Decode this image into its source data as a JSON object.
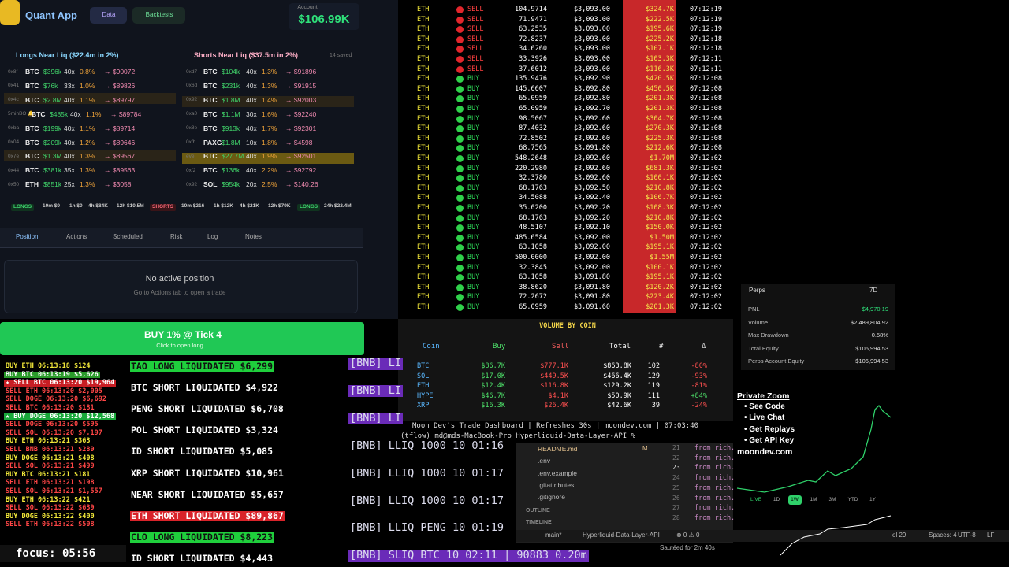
{
  "app": {
    "title": "Quant App",
    "tabs": [
      "Data",
      "Backtests"
    ],
    "account_label": "Account",
    "account_value": "$106.99K"
  },
  "longs": {
    "title": "Longs Near Liq ($22.4m in 2%)",
    "rows": [
      [
        "0x8f",
        "BTC",
        "$396k",
        "40x",
        "0.8%",
        "→ $90072"
      ],
      [
        "0x41",
        "BTC",
        "$76k",
        "33x",
        "1.0%",
        "→ $89826"
      ],
      [
        "0x4c",
        "BTC",
        "$2.8M",
        "40x",
        "1.1%",
        "→ $89797"
      ],
      [
        "5minBO 🔔",
        "BTC",
        "$485k",
        "40x",
        "1.1%",
        "→ $89784"
      ],
      [
        "0xba",
        "BTC",
        "$199k",
        "40x",
        "1.1%",
        "→ $89714"
      ],
      [
        "0x04",
        "BTC",
        "$209k",
        "40x",
        "1.2%",
        "→ $89646"
      ],
      [
        "0x7e",
        "BTC",
        "$1.3M",
        "40x",
        "1.3%",
        "→ $89567"
      ],
      [
        "0x44",
        "BTC",
        "$381k",
        "35x",
        "1.3%",
        "→ $89563"
      ],
      [
        "0x50",
        "ETH",
        "$851k",
        "25x",
        "1.3%",
        "→ $3058"
      ]
    ]
  },
  "shorts": {
    "title": "Shorts Near Liq ($37.5m in 2%)",
    "saved": "14 saved",
    "rows": [
      [
        "0xd7",
        "BTC",
        "$104k",
        "40x",
        "1.3%",
        "→ $91896"
      ],
      [
        "0x6d",
        "BTC",
        "$231k",
        "40x",
        "1.3%",
        "→ $91915"
      ],
      [
        "0x92",
        "BTC",
        "$1.8M",
        "40x",
        "1.4%",
        "→ $92003"
      ],
      [
        "0xa0",
        "BTC",
        "$1.1M",
        "30x",
        "1.6%",
        "→ $92240"
      ],
      [
        "0x8e",
        "BTC",
        "$913k",
        "40x",
        "1.7%",
        "→ $92301"
      ],
      [
        "0xfb",
        "PAXG",
        "$1.8M",
        "10x",
        "1.8%",
        "→ $4598"
      ],
      [
        "eve",
        "BTC",
        "$27.7M",
        "40x",
        "1.9%",
        "→ $92501"
      ],
      [
        "0xf2",
        "BTC",
        "$136k",
        "40x",
        "2.2%",
        "→ $92792"
      ],
      [
        "0x92",
        "SOL",
        "$954k",
        "20x",
        "2.5%",
        "→ $140.26"
      ]
    ]
  },
  "summary": [
    "LONGS",
    "10m $0",
    "1h $0",
    "4h $84K",
    "12h $10.5M",
    "SHORTS",
    "10m $216",
    "1h $12K",
    "4h $21K",
    "12h $79K",
    "LONGS",
    "24h $22.4M"
  ],
  "panel_tabs": [
    "Position",
    "Actions",
    "Scheduled",
    "Risk",
    "Log",
    "Notes"
  ],
  "position": {
    "empty": "No active position",
    "hint": "Go to Actions tab to open a trade"
  },
  "buy_button": {
    "label": "BUY 1% @ Tick 4",
    "hint": "Click to open long"
  },
  "trades_feed": [
    "BUY ETH 06:13:18 $124",
    "BUY BTC 06:13:19 $5,626",
    "★ SELL BTC 06:13:20 $19,964",
    "SELL ETH 06:13:20 $2,005",
    "SELL DOGE 06:13:20 $6,692",
    "SELL BTC 06:13:20 $181",
    "★ BUY DOGE 06:13:20 $12,568",
    "SELL DOGE 06:13:20 $595",
    "SELL SOL 06:13:20 $7,197",
    "BUY ETH 06:13:21 $363",
    "SELL BNB 06:13:21 $289",
    "BUY DOGE 06:13:21 $408",
    "SELL SOL 06:13:21 $499",
    "BUY BTC 06:13:21 $181",
    "SELL ETH 06:13:21 $198",
    "SELL SOL 06:13:21 $1,557",
    "BUY ETH 06:13:22 $421",
    "SELL SOL 06:13:22 $639",
    "BUY DOGE 06:13:22 $400",
    "SELL ETH 06:13:22 $508"
  ],
  "focus": "focus: 05:56",
  "liquidations": [
    "TAO LONG LIQUIDATED $6,299",
    "BTC SHORT LIQUIDATED $4,922",
    "PENG SHORT LIQUIDATED $6,708",
    "POL SHORT LIQUIDATED $3,324",
    "ID SHORT LIQUIDATED $5,085",
    "XRP SHORT LIQUIDATED $10,961",
    "NEAR SHORT LIQUIDATED $5,657",
    "ETH SHORT LIQUIDATED $89,867",
    "CLO LONG LIQUIDATED $8,223",
    "ID SHORT LIQUIDATED $4,443"
  ],
  "bnb": [
    "[BNB] LI",
    "[BNB] LI",
    "[BNB] LI",
    "[BNB] LLIQ 1000 10 01:16",
    "[BNB] LLIQ 1000 10 01:17",
    "[BNB] LLIQ 1000 10 01:17",
    "[BNB] LLIQ PENG 10 01:19",
    "[BNB] SLIQ BTC 10 02:11 | 90883 0.20m"
  ],
  "tape": {
    "rows": [
      [
        "ETH",
        "SELL",
        "104.9714",
        "$3,093.00",
        "$324.7K",
        "07:12:19"
      ],
      [
        "ETH",
        "SELL",
        "71.9471",
        "$3,093.00",
        "$222.5K",
        "07:12:19"
      ],
      [
        "ETH",
        "SELL",
        "63.2535",
        "$3,093.00",
        "$195.6K",
        "07:12:19"
      ],
      [
        "ETH",
        "SELL",
        "72.8237",
        "$3,093.00",
        "$225.2K",
        "07:12:18"
      ],
      [
        "ETH",
        "SELL",
        "34.6260",
        "$3,093.00",
        "$107.1K",
        "07:12:18"
      ],
      [
        "ETH",
        "SELL",
        "33.3926",
        "$3,093.00",
        "$103.3K",
        "07:12:11"
      ],
      [
        "ETH",
        "SELL",
        "37.6012",
        "$3,093.00",
        "$116.3K",
        "07:12:11"
      ],
      [
        "ETH",
        "BUY",
        "135.9476",
        "$3,092.90",
        "$420.5K",
        "07:12:08"
      ],
      [
        "ETH",
        "BUY",
        "145.6607",
        "$3,092.80",
        "$450.5K",
        "07:12:08"
      ],
      [
        "ETH",
        "BUY",
        "65.0959",
        "$3,092.80",
        "$201.3K",
        "07:12:08"
      ],
      [
        "ETH",
        "BUY",
        "65.0959",
        "$3,092.70",
        "$201.3K",
        "07:12:08"
      ],
      [
        "ETH",
        "BUY",
        "98.5067",
        "$3,092.60",
        "$304.7K",
        "07:12:08"
      ],
      [
        "ETH",
        "BUY",
        "87.4032",
        "$3,092.60",
        "$270.3K",
        "07:12:08"
      ],
      [
        "ETH",
        "BUY",
        "72.8502",
        "$3,092.60",
        "$225.3K",
        "07:12:08"
      ],
      [
        "ETH",
        "BUY",
        "68.7565",
        "$3,091.80",
        "$212.6K",
        "07:12:08"
      ],
      [
        "ETH",
        "BUY",
        "548.2648",
        "$3,092.60",
        "$1.70M",
        "07:12:02"
      ],
      [
        "ETH",
        "BUY",
        "220.2980",
        "$3,092.60",
        "$681.3K",
        "07:12:02"
      ],
      [
        "ETH",
        "BUY",
        "32.3780",
        "$3,092.60",
        "$100.1K",
        "07:12:02"
      ],
      [
        "ETH",
        "BUY",
        "68.1763",
        "$3,092.50",
        "$210.8K",
        "07:12:02"
      ],
      [
        "ETH",
        "BUY",
        "34.5088",
        "$3,092.40",
        "$106.7K",
        "07:12:02"
      ],
      [
        "ETH",
        "BUY",
        "35.0200",
        "$3,092.20",
        "$108.3K",
        "07:12:02"
      ],
      [
        "ETH",
        "BUY",
        "68.1763",
        "$3,092.20",
        "$210.8K",
        "07:12:02"
      ],
      [
        "ETH",
        "BUY",
        "48.5107",
        "$3,092.10",
        "$150.0K",
        "07:12:02"
      ],
      [
        "ETH",
        "BUY",
        "485.6584",
        "$3,092.00",
        "$1.50M",
        "07:12:02"
      ],
      [
        "ETH",
        "BUY",
        "63.1058",
        "$3,092.00",
        "$195.1K",
        "07:12:02"
      ],
      [
        "ETH",
        "BUY",
        "500.0000",
        "$3,092.00",
        "$1.55M",
        "07:12:02"
      ],
      [
        "ETH",
        "BUY",
        "32.3845",
        "$3,092.00",
        "$100.1K",
        "07:12:02"
      ],
      [
        "ETH",
        "BUY",
        "63.1058",
        "$3,091.80",
        "$195.1K",
        "07:12:02"
      ],
      [
        "ETH",
        "BUY",
        "38.8620",
        "$3,091.80",
        "$120.2K",
        "07:12:02"
      ],
      [
        "ETH",
        "BUY",
        "72.2672",
        "$3,091.80",
        "$223.4K",
        "07:12:02"
      ],
      [
        "ETH",
        "BUY",
        "65.0959",
        "$3,091.60",
        "$201.3K",
        "07:12:02"
      ]
    ]
  },
  "volume": {
    "title": "VOLUME BY COIN",
    "columns": [
      "Coin",
      "Buy",
      "Sell",
      "Total",
      "#",
      "Δ"
    ],
    "rows": [
      [
        "BTC",
        "$86.7K",
        "$777.1K",
        "$863.8K",
        "102",
        "-80%"
      ],
      [
        "SOL",
        "$17.0K",
        "$449.5K",
        "$466.4K",
        "129",
        "-93%"
      ],
      [
        "ETH",
        "$12.4K",
        "$116.8K",
        "$129.2K",
        "119",
        "-81%"
      ],
      [
        "HYPE",
        "$46.7K",
        "$4.1K",
        "$50.9K",
        "111",
        "+84%"
      ],
      [
        "XRP",
        "$16.3K",
        "$26.4K",
        "$42.6K",
        "39",
        "-24%"
      ]
    ]
  },
  "terminal": [
    "Moon Dev's Trade Dashboard | Refreshes 30s | moondev.com | 07:03:40",
    "(tflow) md@mds-MacBook-Pro Hyperliquid-Data-Layer-API % "
  ],
  "editor": {
    "files": [
      "README.md",
      ".env",
      ".env.example",
      ".gitattributes",
      ".gitignore"
    ],
    "file_status": "M",
    "sections": [
      "OUTLINE",
      "TIMELINE"
    ],
    "line_numbers": [
      "21",
      "22",
      "23",
      "24",
      "25",
      "26",
      "27",
      "28"
    ],
    "code": "from rich.",
    "status": [
      "main*",
      "Hyperliquid-Data-Layer-API",
      "⊗ 0 ⚠ 0",
      "Sautéed for 2m 40s",
      "ol 29",
      "Spaces: 4",
      "UTF-8",
      "LF"
    ]
  },
  "perps": {
    "title": "Perps",
    "period": "7D",
    "rows": [
      [
        "PNL",
        "$4,970.19"
      ],
      [
        "Volume",
        "$2,489,804.92"
      ],
      [
        "Max Drawdown",
        "0.58%"
      ],
      [
        "Total Equity",
        "$106,994.53"
      ],
      [
        "Perps Account Equity",
        "$106,994.53"
      ]
    ]
  },
  "promo": {
    "title": "Private Zoom",
    "items": [
      "• See Code",
      "• Live Chat",
      "• Get Replays",
      "• Get API Key"
    ],
    "site": "moondev.com"
  },
  "ranges": [
    "LIVE",
    "1D",
    "1W",
    "1M",
    "3M",
    "YTD",
    "1Y"
  ]
}
